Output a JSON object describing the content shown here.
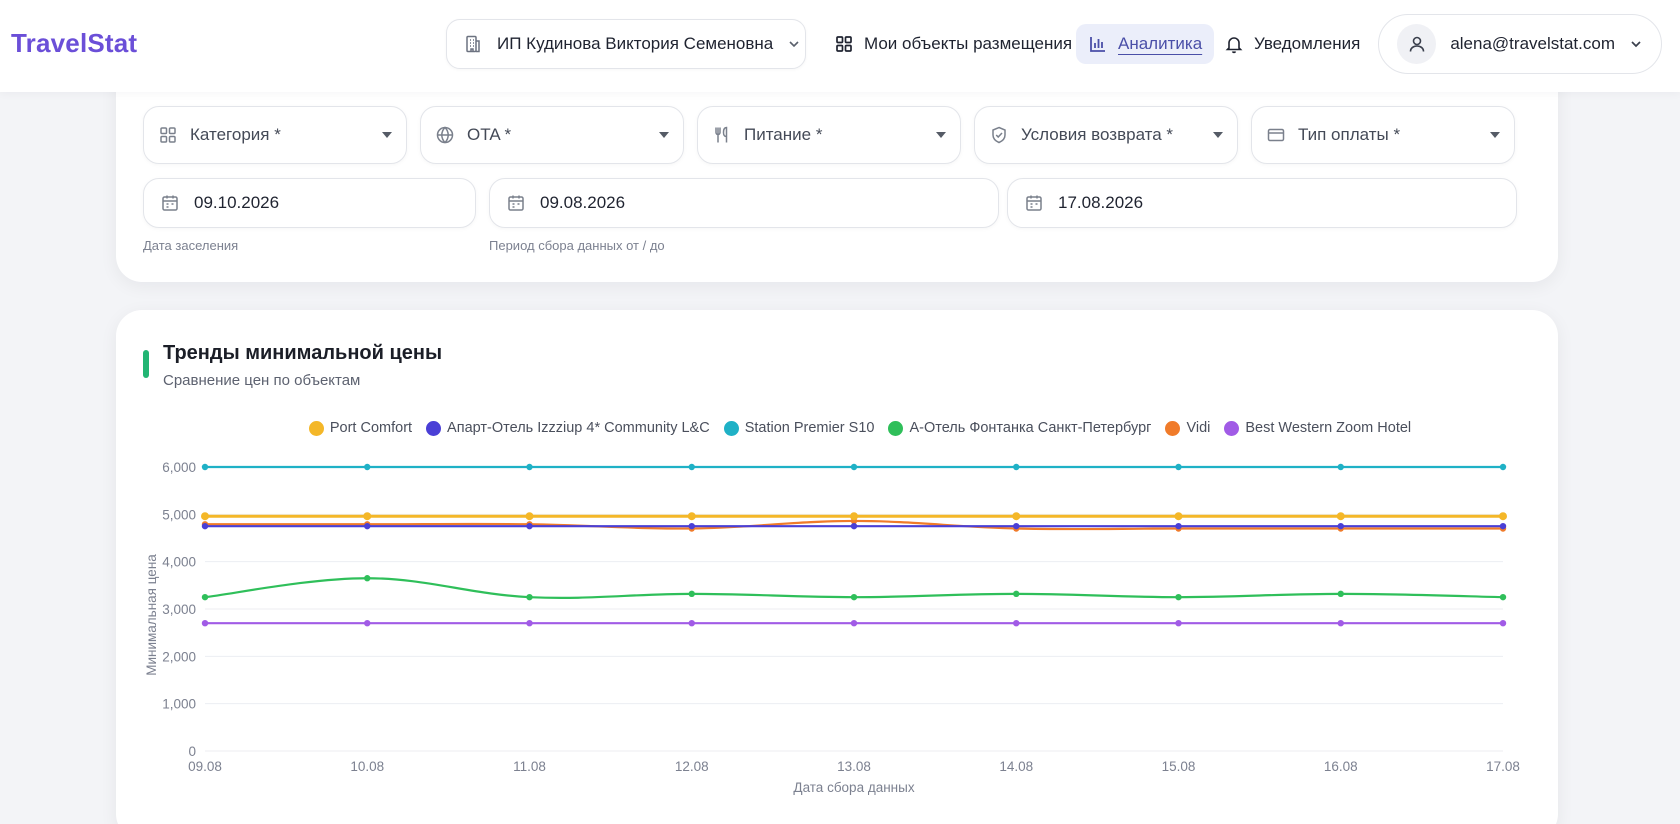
{
  "header": {
    "logo": "TravelStat",
    "org_select": {
      "value": "ИП Кудинова Виктория Семеновна",
      "icon": "building-icon"
    },
    "nav": [
      {
        "label": "Мои объекты размещения",
        "icon": "grid-icon",
        "active": false
      },
      {
        "label": "Аналитика",
        "icon": "bar-chart-icon",
        "active": true
      },
      {
        "label": "Уведомления",
        "icon": "bell-icon",
        "active": false
      }
    ],
    "user": {
      "email": "alena@travelstat.com",
      "icon": "user-icon"
    }
  },
  "filters": {
    "selects": [
      {
        "label": "Категория *",
        "icon": "grid-icon"
      },
      {
        "label": "OTA *",
        "icon": "globe-icon"
      },
      {
        "label": "Питание *",
        "icon": "utensils-icon"
      },
      {
        "label": "Условия возврата *",
        "icon": "shield-check-icon"
      },
      {
        "label": "Тип оплаты *",
        "icon": "credit-card-icon"
      }
    ],
    "checkin_date": "09.10.2026",
    "period_from": "09.08.2026",
    "period_to": "17.08.2026",
    "checkin_hint": "Дата заселения",
    "period_hint": "Период сбора данных от / до"
  },
  "chart_card": {
    "title": "Тренды минимальной цены",
    "subtitle": "Сравнение цен по объектам",
    "accent_color": "#22b573"
  },
  "chart_data": {
    "type": "line",
    "xlabel": "Дата сбора данных",
    "ylabel": "Минимальная цена",
    "ylim": [
      0,
      6000
    ],
    "yticks": [
      0,
      1000,
      2000,
      3000,
      4000,
      5000,
      6000
    ],
    "ytick_labels": [
      "0",
      "1,000",
      "2,000",
      "3,000",
      "4,000",
      "5,000",
      "6,000"
    ],
    "x": [
      "09.08",
      "10.08",
      "11.08",
      "12.08",
      "13.08",
      "14.08",
      "15.08",
      "16.08",
      "17.08"
    ],
    "grid": true,
    "legend_position": "top-center",
    "series": [
      {
        "name": "Port Comfort",
        "color": "#f4b728",
        "values": [
          4960,
          4960,
          4960,
          4960,
          4960,
          4960,
          4960,
          4960,
          4960
        ]
      },
      {
        "name": "Апарт-Отель Izzziup 4* Community L&C",
        "color": "#4a3fd6",
        "values": [
          4750,
          4750,
          4750,
          4750,
          4750,
          4750,
          4750,
          4750,
          4750
        ]
      },
      {
        "name": "Station Premier S10",
        "color": "#1fb1c6",
        "values": [
          6000,
          6000,
          6000,
          6000,
          6000,
          6000,
          6000,
          6000,
          6000
        ]
      },
      {
        "name": "А-Отель Фонтанка Санкт-Петербург",
        "color": "#2fbf5a",
        "values": [
          3250,
          3650,
          3250,
          3320,
          3250,
          3320,
          3250,
          3320,
          3250
        ]
      },
      {
        "name": "Vidi",
        "color": "#f07b2a",
        "values": [
          4790,
          4790,
          4790,
          4700,
          4860,
          4700,
          4700,
          4700,
          4700
        ]
      },
      {
        "name": "Best Western Zoom Hotel",
        "color": "#a15be6",
        "values": [
          2700,
          2700,
          2700,
          2700,
          2700,
          2700,
          2700,
          2700,
          2700
        ]
      }
    ]
  }
}
